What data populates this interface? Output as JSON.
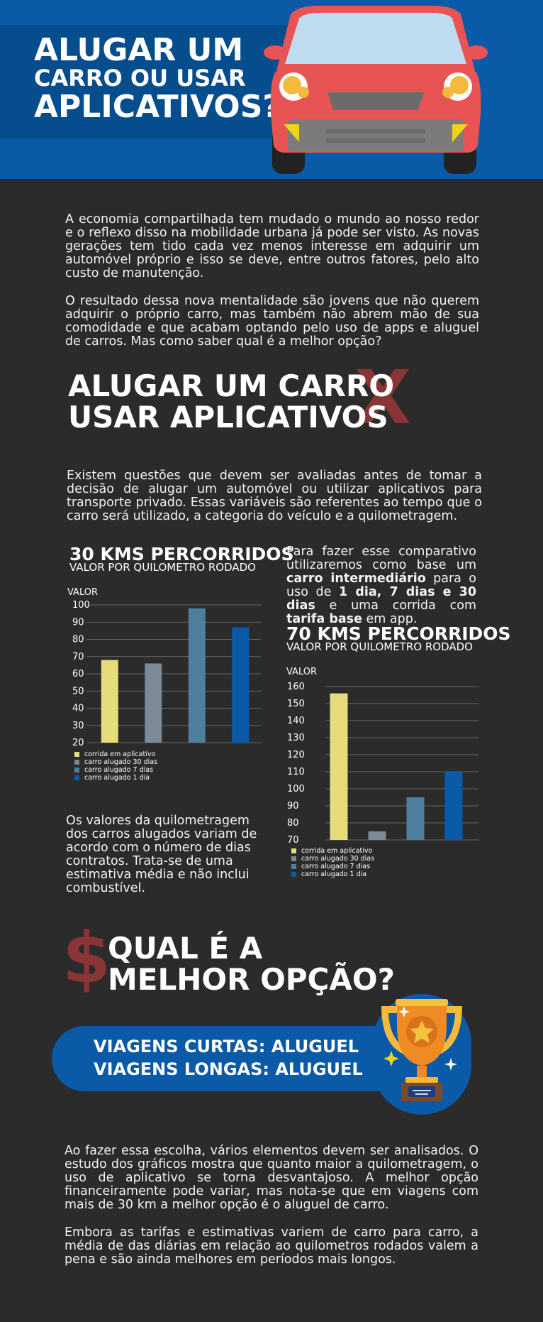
{
  "header": {
    "title_line1": "ALUGAR UM",
    "title_line2": "CARRO OU USAR",
    "title_line3": "APLICATIVOS?"
  },
  "intro": {
    "p1": "A economia compartilhada tem mudado o mundo ao nosso redor e o reflexo disso na mobilidade urbana já pode ser visto. As novas gerações tem tido cada vez menos interesse em adquirir um automóvel próprio e isso se deve, entre outros fatores, pelo alto custo de manutenção.",
    "p2": "O resultado dessa nova mentalidade são jovens que não querem adquirir o próprio carro, mas também não abrem mão de sua comodidade e que acabam optando pelo uso de apps e aluguel de carros. Mas como saber qual é a melhor opção?"
  },
  "section2": {
    "title_line1": "ALUGAR UM CARRO",
    "title_line2": "USAR APLICATIVOS",
    "x_mark": "X",
    "text": "Existem questões que devem ser avaliadas antes de tomar a decisão de alugar um automóvel ou utilizar aplicativos para transporte privado. Essas variáveis são referentes ao tempo que o carro será utilizado, a categoria do veículo e a quilometragem."
  },
  "comparison": {
    "t1": "Para fazer esse comparativo utilizaremos como base um ",
    "b1": "carro intermediário",
    "t2": " para o uso de ",
    "b2": "1 dia, 7 dias e 30 dias",
    "t3": " e uma corrida com ",
    "b3": "tarifa base",
    "t4": " em app."
  },
  "note": "Os valores da quilometragem dos carros alugados variam de acordo com o número de dias contratos. Trata-se de uma estimativa média e não inclui combustível.",
  "chart_data": [
    {
      "type": "bar",
      "title": "30 KMS PERCORRIDOS",
      "subtitle": "VALOR POR QUILOMETRO RODADO",
      "ylabel": "VALOR",
      "ylim": [
        20,
        100
      ],
      "yticks": [
        20,
        30,
        40,
        50,
        60,
        70,
        80,
        90,
        100
      ],
      "grid": true,
      "legend": "bottom-left",
      "categories": [
        "corrida em aplicativo",
        "carro alugado 30 dias",
        "carro alugado 7 dias",
        "carro alugado 1 dia"
      ],
      "values": [
        68,
        66,
        98,
        87
      ],
      "colors": [
        "#e6dc7a",
        "#7a8a97",
        "#4e7f9c",
        "#0a5aa8"
      ]
    },
    {
      "type": "bar",
      "title": "70 KMS PERCORRIDOS",
      "subtitle": "VALOR POR QUILOMETRO RODADO",
      "ylabel": "VALOR",
      "ylim": [
        70,
        160
      ],
      "yticks": [
        70,
        80,
        90,
        100,
        110,
        120,
        130,
        140,
        150,
        160
      ],
      "grid": true,
      "legend": "bottom-left",
      "categories": [
        "corrida em aplicativo",
        "carro alugado 30 dias",
        "carro alugado 7 dias",
        "carro alugado 1 dia"
      ],
      "values": [
        156,
        75,
        95,
        110
      ],
      "colors": [
        "#e6dc7a",
        "#7a8a97",
        "#4e7f9c",
        "#0a5aa8"
      ]
    }
  ],
  "best": {
    "symbol": "$",
    "title_line1": "QUAL É A",
    "title_line2": "MELHOR OPÇÃO?",
    "banner_line1": "VIAGENS CURTAS: ALUGUEL",
    "banner_line2": "VIAGENS LONGAS: ALUGUEL"
  },
  "conclusion": {
    "p1": "Ao fazer essa escolha, vários elementos devem ser analisados. O estudo dos gráficos mostra que quanto maior a quilometragem,  o uso de aplicativo se torna desvantajoso. A melhor opção financeiramente pode variar, mas nota-se que em viagens com mais de 30 km a melhor opção é o aluguel de carro.",
    "p2": "Embora as tarifas e estimativas variem de carro para carro, a média de das diárias em relação ao quilometros rodados valem a pena e são ainda melhores em períodos mais longos."
  },
  "colors": {
    "background": "#2b2b2b",
    "blue": "#0a5aa8",
    "dark_blue": "#064d8d",
    "accent_red": "#8a3535",
    "car_red": "#e85454"
  }
}
